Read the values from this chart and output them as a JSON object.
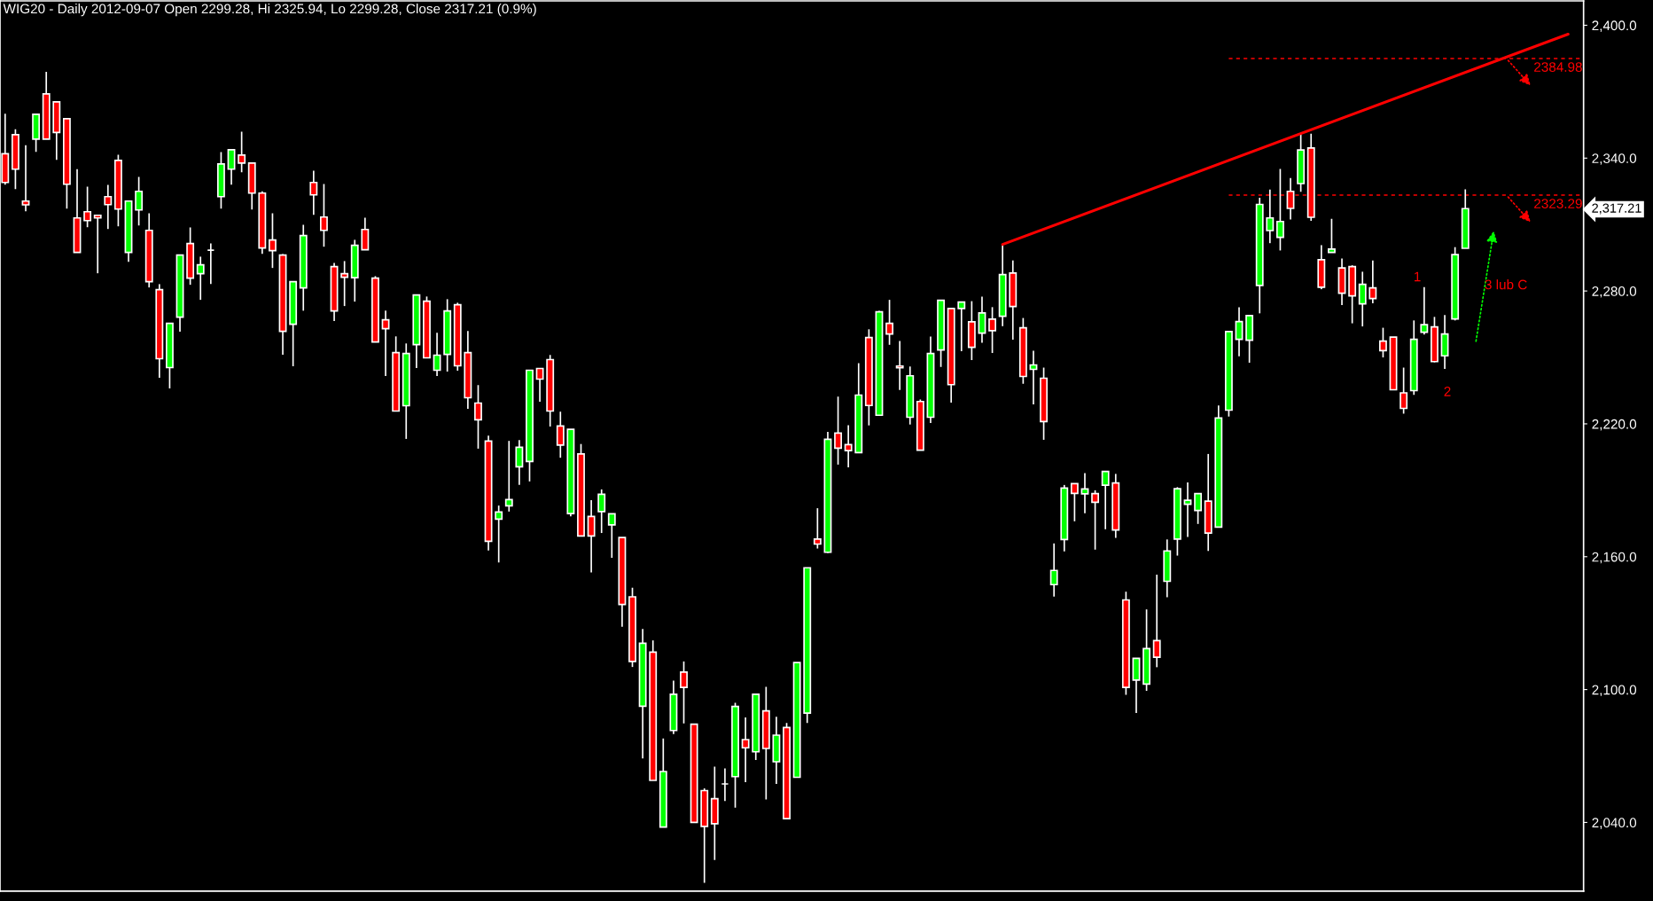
{
  "chart_data": {
    "type": "candlestick",
    "title": "WIG20 - Daily 2012-09-07 Open 2299.28, Hi 2325.94, Lo 2299.28, Close 2317.21 (0.9%)",
    "categories": [
      null,
      null,
      null,
      null,
      null,
      null,
      null,
      null,
      null,
      null,
      null,
      null,
      null,
      null,
      null,
      null,
      null,
      null,
      null,
      null,
      null,
      null,
      null,
      null,
      null,
      null,
      null,
      null,
      null,
      null,
      null,
      null,
      null,
      null,
      null,
      null,
      null,
      null,
      null,
      null,
      null,
      null,
      null,
      null,
      null,
      null,
      null,
      null,
      null,
      null,
      null,
      null,
      null,
      null,
      null,
      null,
      null,
      null,
      null,
      null,
      null,
      null,
      null,
      null,
      null,
      null,
      null,
      null,
      null,
      null,
      null,
      null,
      null,
      null,
      null,
      null,
      null,
      null,
      null,
      null,
      null,
      null,
      null,
      null,
      null,
      null,
      null,
      null,
      null,
      null,
      null,
      null,
      null,
      null,
      null,
      null,
      null,
      null,
      null,
      null,
      null,
      null,
      null,
      null,
      null,
      null,
      null,
      null,
      null,
      null,
      null,
      null,
      null,
      null,
      null,
      null,
      null,
      null,
      null,
      null,
      null,
      null,
      null,
      null,
      null,
      null,
      null,
      null,
      null,
      null,
      null,
      null,
      null,
      null,
      null,
      null,
      null,
      null,
      null,
      null,
      null,
      null,
      null,
      null,
      null,
      null,
      null,
      null,
      null,
      null,
      null,
      null,
      null,
      null
    ],
    "ohlc": [
      [
        2342,
        2360,
        2328,
        2329
      ],
      [
        2350.6,
        2353,
        2326,
        2335
      ],
      [
        2320.6,
        2345.8,
        2316,
        2318.9
      ],
      [
        2348.6,
        2360,
        2342.8,
        2359.8
      ],
      [
        2369,
        2379,
        2348.6,
        2348.6
      ],
      [
        2365.4,
        2365.8,
        2339.2,
        2351.6
      ],
      [
        2357.8,
        2357.8,
        2317.2,
        2328.2
      ],
      [
        2313,
        2335,
        2297.4,
        2297.4
      ],
      [
        2315.8,
        2327.1,
        2308.8,
        2311.8
      ],
      [
        2314.2,
        2314.2,
        2288,
        2313
      ],
      [
        2322.6,
        2327.9,
        2308,
        2319
      ],
      [
        2339,
        2341.5,
        2309.2,
        2317
      ],
      [
        2297.4,
        2320.6,
        2293.2,
        2320.6
      ],
      [
        2316.6,
        2331.5,
        2309.6,
        2325
      ],
      [
        2307.4,
        2315.1,
        2281.6,
        2284.2
      ],
      [
        2280.6,
        2283.1,
        2240.8,
        2249.4
      ],
      [
        2245.4,
        2265.4,
        2236,
        2265.4
      ],
      [
        2268.2,
        2296.2,
        2261.6,
        2296.2
      ],
      [
        2301.4,
        2308.7,
        2282.8,
        2285.8
      ],
      [
        2287.8,
        2295.5,
        2276,
        2291.8
      ],
      [
        2298.4,
        2301.5,
        2283.2,
        2298.4
      ],
      [
        2322.6,
        2342.7,
        2317.2,
        2337.4
      ],
      [
        2335,
        2343.8,
        2328,
        2343.8
      ],
      [
        2341.4,
        2351.9,
        2333.6,
        2337.8
      ],
      [
        2337.8,
        2337.8,
        2316.8,
        2324.2
      ],
      [
        2324.2,
        2325,
        2296.8,
        2299.4
      ],
      [
        2303,
        2315.1,
        2290.4,
        2298.2
      ],
      [
        2296.2,
        2296.7,
        2251.2,
        2261.8
      ],
      [
        2265,
        2284.2,
        2246,
        2284.2
      ],
      [
        2281.4,
        2309.9,
        2271.1,
        2305
      ],
      [
        2329,
        2334.3,
        2314.4,
        2323.4
      ],
      [
        2313.4,
        2328.3,
        2300,
        2307.4
      ],
      [
        2291,
        2292.7,
        2266.4,
        2271
      ],
      [
        2287.8,
        2293.5,
        2273.2,
        2286.2
      ],
      [
        2286,
        2303.1,
        2275.2,
        2300.6
      ],
      [
        2307.8,
        2313.1,
        2298.6,
        2298.6
      ],
      [
        2285.8,
        2286.7,
        2257,
        2257
      ],
      [
        2267,
        2271.1,
        2241.6,
        2263
      ],
      [
        2252.2,
        2259.5,
        2225.8,
        2225.8
      ],
      [
        2228.2,
        2256.3,
        2213.2,
        2251.8
      ],
      [
        2255.8,
        2278.2,
        2245.2,
        2278.2
      ],
      [
        2275.4,
        2277.5,
        2249.8,
        2249.8
      ],
      [
        2244.2,
        2261.1,
        2241.6,
        2251
      ],
      [
        2251.4,
        2276.3,
        2243.6,
        2271
      ],
      [
        2273.8,
        2274.7,
        2244,
        2246.2
      ],
      [
        2252.2,
        2261.9,
        2226.8,
        2231.8
      ],
      [
        2229.4,
        2237.5,
        2208.8,
        2221.8
      ],
      [
        2212.2,
        2214.7,
        2162.8,
        2167
      ],
      [
        2177,
        2183.1,
        2157.4,
        2180.2
      ],
      [
        2183,
        2212.3,
        2180.4,
        2185.8
      ],
      [
        2200.6,
        2212.7,
        2192.4,
        2209.4
      ],
      [
        2203,
        2244.2,
        2194,
        2244.2
      ],
      [
        2245,
        2245,
        2230,
        2240.2
      ],
      [
        2249,
        2251.1,
        2218.8,
        2225.8
      ],
      [
        2219,
        2225.5,
        2204.7,
        2210.4
      ],
      [
        2179.5,
        2217.5,
        2178.2,
        2217.5
      ],
      [
        2206.4,
        2210.9,
        2169.4,
        2169.4
      ],
      [
        2178.2,
        2185.5,
        2152.9,
        2169.4
      ],
      [
        2180.4,
        2190.4,
        2170.7,
        2188.2
      ],
      [
        2174.4,
        2179.4,
        2159.5,
        2179.4
      ],
      [
        2168.7,
        2168.7,
        2128.4,
        2138.4
      ],
      [
        2141.9,
        2146,
        2110.2,
        2112.7
      ],
      [
        2092.5,
        2127.4,
        2068.9,
        2120.9
      ],
      [
        2116.9,
        2122.2,
        2059,
        2059
      ],
      [
        2037.9,
        2077.9,
        2037.9,
        2063
      ],
      [
        2081.5,
        2104,
        2079.9,
        2097.9
      ],
      [
        2107.9,
        2112.7,
        2084.7,
        2101
      ],
      [
        2084.4,
        2084.4,
        2040,
        2040
      ],
      [
        2054.4,
        2055.4,
        2012.7,
        2038.2
      ],
      [
        2050.7,
        2065.2,
        2023,
        2039.4
      ],
      [
        2057.4,
        2064.4,
        2049.7,
        2057.4
      ],
      [
        2060.7,
        2094,
        2046.7,
        2092.4
      ],
      [
        2077.4,
        2087.4,
        2058.2,
        2073.7
      ],
      [
        2071.9,
        2097.9,
        2068.2,
        2097.9
      ],
      [
        2090.4,
        2101.2,
        2050.4,
        2073.4
      ],
      [
        2067.4,
        2087.7,
        2057.4,
        2079.4
      ],
      [
        2082.9,
        2084.9,
        2041.7,
        2041.7
      ],
      [
        2060.4,
        2112.2,
        2060.4,
        2112.2
      ],
      [
        2089.4,
        2155,
        2084.9,
        2155
      ],
      [
        2168,
        2181.9,
        2163.7,
        2165.7
      ],
      [
        2162,
        2216.4,
        2161.7,
        2213
      ],
      [
        2215.8,
        2232.3,
        2201.6,
        2209
      ],
      [
        2210.6,
        2219.4,
        2200.4,
        2207.9
      ],
      [
        2207,
        2247.4,
        2207,
        2233
      ],
      [
        2259,
        2262.7,
        2219.3,
        2228.3
      ],
      [
        2223.9,
        2271,
        2223.9,
        2270.6
      ],
      [
        2265.4,
        2276,
        2255.7,
        2260.6
      ],
      [
        2246.1,
        2257.4,
        2235.3,
        2245.3
      ],
      [
        2223,
        2245.9,
        2219.7,
        2241.7
      ],
      [
        2230.1,
        2231,
        2208.1,
        2208.1
      ],
      [
        2223,
        2259.4,
        2220.4,
        2251.8
      ],
      [
        2253.4,
        2275.8,
        2245.7,
        2275.8
      ],
      [
        2272.1,
        2272.1,
        2229.6,
        2237.7
      ],
      [
        2272.1,
        2275,
        2252.8,
        2275
      ],
      [
        2266.1,
        2275.4,
        2248.8,
        2254.6
      ],
      [
        2261,
        2277.4,
        2256.6,
        2270.1
      ],
      [
        2267.3,
        2272.7,
        2252,
        2262.1
      ],
      [
        2268.6,
        2301,
        2264.1,
        2287.4
      ],
      [
        2288.1,
        2293.8,
        2258,
        2273
      ],
      [
        2263.4,
        2267.8,
        2238.1,
        2241.4
      ],
      [
        2244.6,
        2253,
        2228.8,
        2246.6
      ],
      [
        2240.6,
        2245.4,
        2212.8,
        2221
      ],
      [
        2147.4,
        2166,
        2142,
        2153.8
      ],
      [
        2167.8,
        2192.4,
        2162.4,
        2191
      ],
      [
        2193,
        2193,
        2176,
        2188.6
      ],
      [
        2188.4,
        2197.8,
        2179.6,
        2190.6
      ],
      [
        2188.5,
        2190,
        2163.2,
        2184.6
      ],
      [
        2192.3,
        2198.5,
        2172.4,
        2198.5
      ],
      [
        2193.3,
        2197.4,
        2168.5,
        2172.1
      ],
      [
        2140.5,
        2144.2,
        2097.6,
        2101
      ],
      [
        2104.3,
        2114.1,
        2089.4,
        2114.1
      ],
      [
        2102.5,
        2136.2,
        2099.4,
        2118.5
      ],
      [
        2122.1,
        2151.9,
        2110.1,
        2114.6
      ],
      [
        2148.9,
        2167.8,
        2141.7,
        2162.6
      ],
      [
        2168,
        2191.4,
        2160.5,
        2190.7
      ],
      [
        2183.7,
        2193.5,
        2168.9,
        2185.5
      ],
      [
        2180.9,
        2188.5,
        2174.8,
        2188.5
      ],
      [
        2185.1,
        2206.4,
        2162.6,
        2170.7
      ],
      [
        2173.4,
        2228.3,
        2173.4,
        2222.6
      ],
      [
        2226.2,
        2261.7,
        2223.3,
        2261.7
      ],
      [
        2258.2,
        2272.6,
        2250.5,
        2266.2
      ],
      [
        2257.8,
        2268.9,
        2247.6,
        2268.9
      ],
      [
        2282.5,
        2322.1,
        2269.9,
        2319.1
      ],
      [
        2307.3,
        2325.8,
        2301.6,
        2313
      ],
      [
        2304.2,
        2335.1,
        2298.3,
        2311.4
      ],
      [
        2325,
        2331,
        2312.3,
        2317.3
      ],
      [
        2328.5,
        2350.7,
        2324.8,
        2343.7
      ],
      [
        2344.6,
        2351,
        2311.7,
        2313.3
      ],
      [
        2294.1,
        2300.7,
        2280.8,
        2281.7
      ],
      [
        2297.4,
        2312.6,
        2297.4,
        2298.9
      ],
      [
        2290.4,
        2294.7,
        2273.6,
        2279
      ],
      [
        2291,
        2291.6,
        2265.4,
        2277.8
      ],
      [
        2274.2,
        2288.7,
        2264,
        2283
      ],
      [
        2281.4,
        2293.8,
        2274.4,
        2276.6
      ],
      [
        2257.4,
        2263.4,
        2250,
        2253.1
      ],
      [
        2259.2,
        2259.2,
        2235.4,
        2235.4
      ],
      [
        2234,
        2245.4,
        2224.6,
        2227
      ],
      [
        2235,
        2266.7,
        2233.1,
        2258.2
      ],
      [
        2261.4,
        2281.8,
        2260.3,
        2264.8
      ],
      [
        2263.8,
        2268.3,
        2247.8,
        2248.1
      ],
      [
        2250.7,
        2269.1,
        2244.8,
        2260.6
      ],
      [
        2267.4,
        2299.8,
        2266.7,
        2296.4
      ],
      [
        2299.28,
        2325.94,
        2299.28,
        2317.21
      ],
      null,
      null,
      null,
      null,
      null,
      null,
      null,
      null,
      null,
      null,
      null
    ],
    "colors": [
      "#ff0000",
      "#ff0000",
      "#ff0000",
      "#00ff00",
      "#ff0000",
      "#ff0000",
      "#ff0000",
      "#ff0000",
      "#ff0000",
      "#ff0000",
      "#ff0000",
      "#ff0000",
      "#00ff00",
      "#00ff00",
      "#ff0000",
      "#ff0000",
      "#00ff00",
      "#00ff00",
      "#ff0000",
      "#00ff00",
      "#ffffff",
      "#00ff00",
      "#00ff00",
      "#ff0000",
      "#ff0000",
      "#ff0000",
      "#ff0000",
      "#ff0000",
      "#00ff00",
      "#00ff00",
      "#ff0000",
      "#ff0000",
      "#ff0000",
      "#ff0000",
      "#00ff00",
      "#ff0000",
      "#ff0000",
      "#ff0000",
      "#ff0000",
      "#00ff00",
      "#00ff00",
      "#ff0000",
      "#00ff00",
      "#00ff00",
      "#ff0000",
      "#ff0000",
      "#ff0000",
      "#ff0000",
      "#00ff00",
      "#00ff00",
      "#00ff00",
      "#00ff00",
      "#ff0000",
      "#ff0000",
      "#ff0000",
      "#00ff00",
      "#ff0000",
      "#ff0000",
      "#00ff00",
      "#00ff00",
      "#ff0000",
      "#ff0000",
      "#00ff00",
      "#ff0000",
      "#00ff00",
      "#00ff00",
      "#ff0000",
      "#ff0000",
      "#ff0000",
      "#ff0000",
      "#ffffff",
      "#00ff00",
      "#ff0000",
      "#00ff00",
      "#ff0000",
      "#00ff00",
      "#ff0000",
      "#00ff00",
      "#00ff00",
      "#ff0000",
      "#00ff00",
      "#ff0000",
      "#ff0000",
      "#00ff00",
      "#ff0000",
      "#00ff00",
      "#ff0000",
      "#ff0000",
      "#00ff00",
      "#ff0000",
      "#00ff00",
      "#00ff00",
      "#ff0000",
      "#00ff00",
      "#ff0000",
      "#00ff00",
      "#ff0000",
      "#00ff00",
      "#ff0000",
      "#ff0000",
      "#00ff00",
      "#ff0000",
      "#00ff00",
      "#00ff00",
      "#ff0000",
      "#00ff00",
      "#ff0000",
      "#00ff00",
      "#ff0000",
      "#ff0000",
      "#00ff00",
      "#00ff00",
      "#ff0000",
      "#00ff00",
      "#00ff00",
      "#00ff00",
      "#00ff00",
      "#ff0000",
      "#00ff00",
      "#00ff00",
      "#00ff00",
      "#00ff00",
      "#00ff00",
      "#00ff00",
      "#00ff00",
      "#ff0000",
      "#00ff00",
      "#ff0000",
      "#ff0000",
      "#00ff00",
      "#ff0000",
      "#ff0000",
      "#00ff00",
      "#ff0000",
      "#ff0000",
      "#ff0000",
      "#ff0000",
      "#00ff00",
      "#00ff00",
      "#ff0000",
      "#00ff00",
      "#00ff00",
      "#00ff00",
      null,
      null,
      null,
      null,
      null,
      null,
      null,
      null,
      null,
      null,
      null
    ],
    "series": [
      {
        "type": "line",
        "color": "#ff0000",
        "values": [
          null,
          null,
          null,
          null,
          null,
          null,
          null,
          null,
          null,
          null,
          null,
          null,
          null,
          null,
          null,
          null,
          null,
          null,
          null,
          null,
          null,
          null,
          null,
          null,
          null,
          null,
          null,
          null,
          null,
          null,
          null,
          null,
          null,
          null,
          null,
          null,
          null,
          null,
          null,
          null,
          null,
          null,
          null,
          null,
          null,
          null,
          null,
          null,
          null,
          null,
          null,
          null,
          null,
          null,
          null,
          null,
          null,
          null,
          null,
          null,
          null,
          null,
          null,
          null,
          null,
          null,
          null,
          null,
          null,
          null,
          null,
          null,
          null,
          null,
          null,
          null,
          null,
          null,
          null,
          null,
          null,
          null,
          null,
          null,
          null,
          null,
          null,
          null,
          null,
          null,
          null,
          null,
          null,
          null,
          null,
          null,
          null,
          2301,
          null,
          null,
          null,
          null,
          null,
          null,
          null,
          null,
          null,
          null,
          null,
          null,
          null,
          null,
          null,
          null,
          null,
          null,
          null,
          null,
          null,
          null,
          null,
          null,
          null,
          null,
          null,
          null,
          null,
          null,
          null,
          null,
          null,
          null,
          null,
          null,
          null,
          null,
          null,
          null,
          null,
          null,
          null,
          null,
          null,
          null,
          null,
          null,
          null,
          null,
          null,
          null,
          null,
          null,
          2396,
          null
        ]
      }
    ],
    "ylim": [
      2009,
      2411
    ],
    "yticks": [
      {
        "value": 2040,
        "label": "2,040.0"
      },
      {
        "value": 2100,
        "label": "2,100.0"
      },
      {
        "value": 2160,
        "label": "2,160.0"
      },
      {
        "value": 2220,
        "label": "2,220.0"
      },
      {
        "value": 2280,
        "label": "2,280.0"
      },
      {
        "value": 2340,
        "label": "2,340.0"
      },
      {
        "value": 2400,
        "label": "2,400.0"
      }
    ],
    "ref_lines": [
      {
        "axis": "y",
        "value": 2384.98,
        "label": "2384.98",
        "color": "#ff0000",
        "line_style": "dashed"
      },
      {
        "axis": "y",
        "value": 2323.29,
        "label": "2323.29",
        "color": "#ff0000",
        "line_style": "dashed"
      }
    ],
    "annotations": [
      "1",
      "2",
      "3 lub C",
      "2,317.21"
    ]
  }
}
